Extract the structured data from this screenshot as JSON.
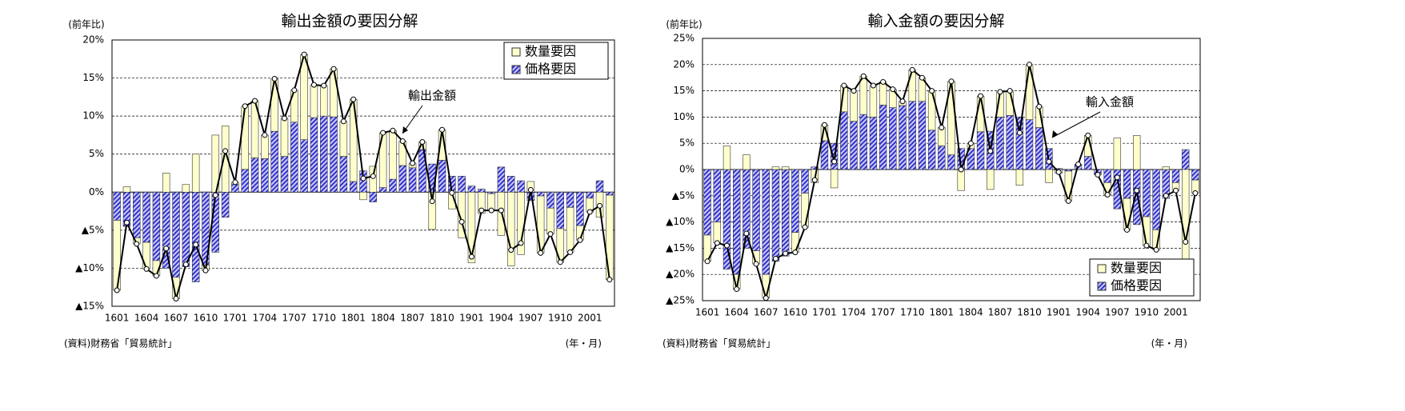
{
  "chart_data": [
    {
      "type": "bar",
      "title": "輸出金額の要因分解",
      "y_axis_label": "(前年比)",
      "source": "(資料)財務省「貿易統計」",
      "x_axis_label": "(年・月)",
      "legend": "upper right",
      "stacked": true,
      "categories": [
        "1601",
        null,
        null,
        "1604",
        null,
        null,
        "1607",
        null,
        null,
        "1610",
        null,
        null,
        "1701",
        null,
        null,
        "1704",
        null,
        null,
        "1707",
        null,
        null,
        "1710",
        null,
        null,
        "1801",
        null,
        null,
        "1804",
        null,
        null,
        "1807",
        null,
        null,
        "1810",
        null,
        null,
        "1901",
        null,
        null,
        "1904",
        null,
        null,
        "1907",
        null,
        null,
        "1910",
        null,
        null,
        "2001",
        null,
        null
      ],
      "series": [
        {
          "name": "数量要因",
          "color": "#ffffcc",
          "values": [
            -9.2,
            0.7,
            -0.8,
            -3.5,
            -2.0,
            2.5,
            -2.8,
            1.0,
            5.0,
            -0.7,
            7.5,
            8.7,
            0.3,
            8.3,
            7.5,
            3.1,
            6.9,
            5.0,
            4.2,
            11.2,
            4.3,
            4.0,
            6.3,
            4.6,
            10.8,
            -1.0,
            3.4,
            7.2,
            6.4,
            3.2,
            0.6,
            1.0,
            -4.9,
            4.0,
            -2.2,
            -6.0,
            -9.3,
            -2.8,
            -2.2,
            -5.7,
            -9.7,
            -8.2,
            1.4,
            -7.5,
            -3.4,
            -4.4,
            -5.9,
            -1.9,
            -1.8,
            -3.3,
            -11.1
          ]
        },
        {
          "name": "価格要因",
          "color": "#3333cc",
          "hatch": true,
          "values": [
            -3.7,
            -4.5,
            -6.0,
            -6.6,
            -9.0,
            -10.0,
            -11.2,
            -9.8,
            -11.8,
            -9.6,
            -7.9,
            -3.3,
            1.0,
            3.0,
            4.5,
            4.4,
            8.0,
            4.7,
            9.2,
            6.9,
            9.8,
            10.0,
            9.9,
            4.7,
            1.4,
            2.8,
            -1.3,
            0.6,
            1.7,
            3.5,
            3.2,
            5.6,
            3.7,
            4.2,
            2.1,
            2.1,
            0.8,
            0.4,
            -0.2,
            3.3,
            2.1,
            1.5,
            -1.1,
            -0.5,
            -2.1,
            -4.8,
            -2.0,
            -4.4,
            -0.8,
            1.5,
            -0.4
          ]
        },
        {
          "name": "輸出金額",
          "type": "line",
          "color": "#000000",
          "values": [
            -12.9,
            -4.0,
            -6.8,
            -10.1,
            -11.0,
            -7.4,
            -14.0,
            -9.5,
            -6.9,
            -10.3,
            -0.4,
            5.4,
            1.3,
            11.3,
            12.0,
            7.5,
            14.9,
            9.7,
            13.4,
            18.1,
            14.1,
            14.0,
            16.2,
            9.3,
            12.2,
            1.8,
            2.1,
            7.8,
            8.1,
            6.7,
            3.8,
            6.6,
            -1.2,
            8.2,
            -0.1,
            -3.9,
            -8.5,
            -2.4,
            -2.4,
            -2.4,
            -7.6,
            -6.7,
            0.3,
            -8.0,
            -5.5,
            -9.2,
            -7.9,
            -6.3,
            -2.6,
            -1.8,
            -11.5
          ]
        }
      ],
      "ylim": [
        -15,
        20
      ],
      "yticks": [
        {
          "value": 20,
          "label": "20%"
        },
        {
          "value": 15,
          "label": "15%"
        },
        {
          "value": 10,
          "label": "10%"
        },
        {
          "value": 5,
          "label": "5%"
        },
        {
          "value": 0,
          "label": "0%"
        },
        {
          "value": -5,
          "label": "▲5%"
        },
        {
          "value": -10,
          "label": "▲10%"
        },
        {
          "value": -15,
          "label": "▲15%"
        }
      ],
      "grid": true
    },
    {
      "type": "bar",
      "title": "輸入金額の要因分解",
      "y_axis_label": "(前年比)",
      "source": "(資料)財務省「貿易統計」",
      "x_axis_label": "(年・月)",
      "legend": "lower right",
      "stacked": true,
      "categories": [
        "1601",
        null,
        null,
        "1604",
        null,
        null,
        "1607",
        null,
        null,
        "1610",
        null,
        null,
        "1701",
        null,
        null,
        "1704",
        null,
        null,
        "1707",
        null,
        null,
        "1710",
        null,
        null,
        "1801",
        null,
        null,
        "1804",
        null,
        null,
        "1807",
        null,
        null,
        "1810",
        null,
        null,
        "1901",
        null,
        null,
        "1904",
        null,
        null,
        "1907",
        null,
        null,
        "1910",
        null,
        null,
        "2001",
        null,
        null
      ],
      "series": [
        {
          "name": "数量要因",
          "color": "#ffffcc",
          "values": [
            -5.0,
            -4.0,
            4.5,
            -2.8,
            2.8,
            -2.5,
            -4.5,
            0.5,
            0.5,
            -3.8,
            -6.5,
            -2.5,
            3.0,
            -3.5,
            5.0,
            5.8,
            7.3,
            6.0,
            4.4,
            3.5,
            0.8,
            6.0,
            4.5,
            7.5,
            3.5,
            14.0,
            -4.0,
            1.0,
            6.8,
            -3.8,
            4.8,
            4.7,
            -3.0,
            10.5,
            4.0,
            -2.5,
            -0.7,
            -5.7,
            0.0,
            4.0,
            0.0,
            -2.3,
            6.0,
            -6.0,
            6.5,
            -5.5,
            -3.8,
            0.5,
            -1.5,
            -17.6,
            -2.5
          ]
        },
        {
          "name": "価格要因",
          "color": "#3333cc",
          "hatch": true,
          "values": [
            -12.5,
            -10.0,
            -19.0,
            -20.0,
            -15.0,
            -15.5,
            -20.0,
            -17.5,
            -16.5,
            -12.0,
            -4.5,
            0.5,
            5.5,
            5.0,
            11.0,
            9.2,
            10.5,
            10.0,
            12.3,
            11.8,
            12.2,
            13.0,
            13.0,
            7.5,
            4.5,
            2.8,
            4.0,
            4.0,
            7.2,
            7.3,
            10.0,
            10.3,
            10.0,
            9.5,
            8.0,
            4.0,
            0.2,
            -0.3,
            1.0,
            2.5,
            -1.0,
            -2.5,
            -7.5,
            -5.5,
            -10.5,
            -9.0,
            -11.5,
            -5.5,
            -2.5,
            3.8,
            -2.0
          ]
        },
        {
          "name": "輸入金額",
          "type": "line",
          "color": "#000000",
          "values": [
            -17.5,
            -14.0,
            -14.5,
            -22.8,
            -12.2,
            -18.0,
            -24.5,
            -17.0,
            -16.0,
            -15.8,
            -11.0,
            -2.0,
            8.5,
            1.5,
            16.0,
            15.0,
            17.8,
            16.0,
            16.7,
            15.3,
            13.0,
            19.0,
            17.5,
            15.0,
            8.0,
            16.8,
            0.0,
            5.0,
            14.0,
            3.5,
            14.8,
            15.0,
            7.0,
            20.0,
            12.0,
            1.5,
            -0.5,
            -6.0,
            1.0,
            6.5,
            -1.0,
            -4.8,
            -1.5,
            -11.5,
            -4.0,
            -14.5,
            -15.3,
            -5.0,
            -4.0,
            -13.8,
            -4.5
          ]
        }
      ],
      "ylim": [
        -25,
        25
      ],
      "yticks": [
        {
          "value": 25,
          "label": "25%"
        },
        {
          "value": 20,
          "label": "20%"
        },
        {
          "value": 15,
          "label": "15%"
        },
        {
          "value": 10,
          "label": "10%"
        },
        {
          "value": 5,
          "label": "5%"
        },
        {
          "value": 0,
          "label": "0%"
        },
        {
          "value": -5,
          "label": "▲5%"
        },
        {
          "value": -10,
          "label": "▲10%"
        },
        {
          "value": -15,
          "label": "▲15%"
        },
        {
          "value": -20,
          "label": "▲20%"
        },
        {
          "value": -25,
          "label": "▲25%"
        }
      ],
      "grid": true
    }
  ]
}
